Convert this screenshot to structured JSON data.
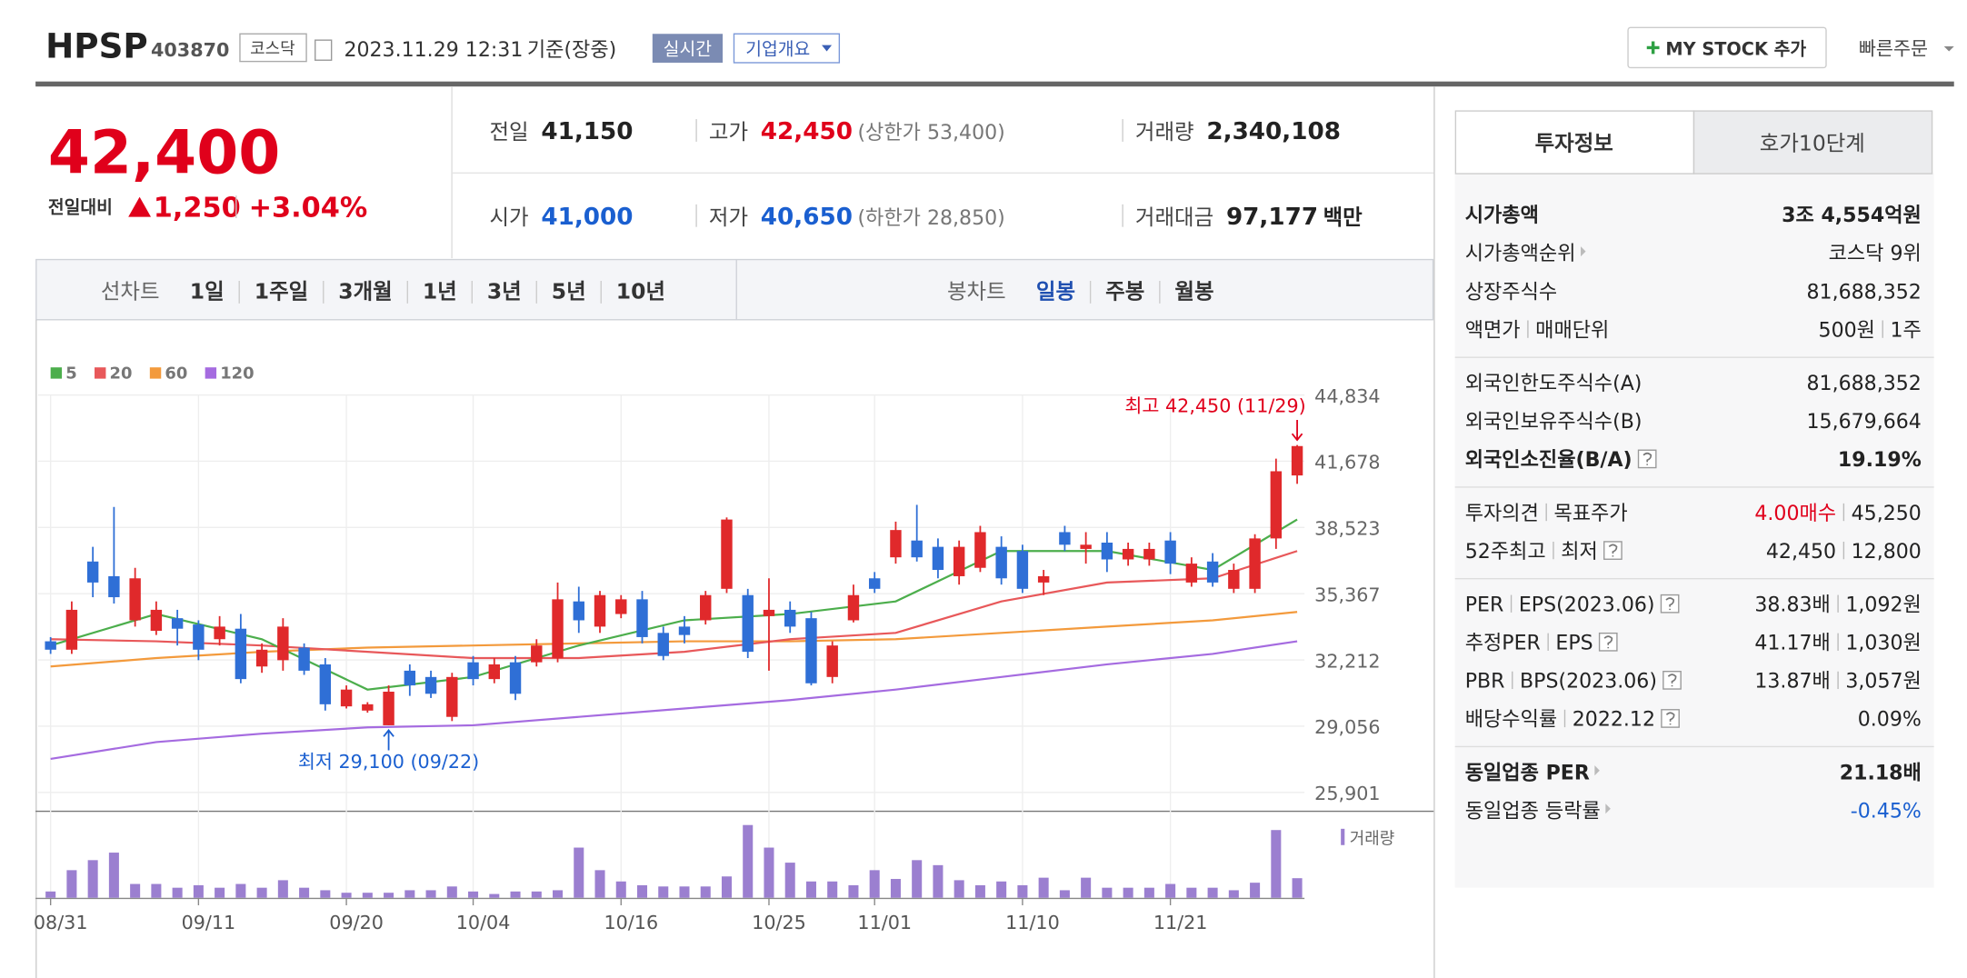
{
  "header": {
    "ticker": "HPSP",
    "code": "403870",
    "market": "코스닥",
    "datetime": "2023.11.29 12:31",
    "basis": "기준(장중)",
    "realtime": "실시간",
    "company": "기업개요",
    "my_stock": "MY STOCK 추가",
    "quick_order": "빠른주문"
  },
  "quote": {
    "price": "42,400",
    "change_label": "전일대비",
    "change": "1,250",
    "change_rate": "+3.04%"
  },
  "stats": [
    [
      {
        "label": "전일",
        "value": "41,150"
      },
      {
        "label": "고가",
        "value": "42,450",
        "note": "(상한가 53,400)",
        "color": "#e0001b"
      },
      {
        "label": "거래량",
        "value": "2,340,108"
      }
    ],
    [
      {
        "label": "시가",
        "value": "41,000",
        "color": "#1a5fd0"
      },
      {
        "label": "저가",
        "value": "40,650",
        "note": "(하한가 28,850)",
        "color": "#1a5fd0"
      },
      {
        "label": "거래대금",
        "value": "97,177",
        "unit": "백만"
      }
    ]
  ],
  "periods": {
    "line_label": "선차트",
    "line": [
      "1일",
      "1주일",
      "3개월",
      "1년",
      "3년",
      "5년",
      "10년"
    ],
    "candle_label": "봉차트",
    "candle": [
      "일봉",
      "주봉",
      "월봉"
    ],
    "selected_candle": 0
  },
  "chart_data": {
    "type": "candlestick",
    "categories": [
      "08/31",
      null,
      null,
      null,
      null,
      null,
      null,
      "09/11",
      null,
      null,
      null,
      null,
      null,
      null,
      "09/20",
      null,
      null,
      null,
      null,
      null,
      "10/04",
      null,
      null,
      null,
      null,
      null,
      null,
      "10/16",
      null,
      null,
      null,
      null,
      null,
      null,
      "10/25",
      null,
      null,
      null,
      null,
      "11/01",
      null,
      null,
      null,
      null,
      null,
      null,
      "11/10",
      null,
      null,
      null,
      null,
      null,
      null,
      "11/21",
      null,
      null,
      null,
      null,
      null,
      null
    ],
    "open": [
      33100,
      32700,
      36900,
      36200,
      34100,
      33600,
      34200,
      33900,
      33200,
      33700,
      31900,
      32200,
      32800,
      32000,
      30000,
      29800,
      29100,
      31700,
      31400,
      29500,
      32100,
      31300,
      32100,
      32100,
      32300,
      35000,
      33800,
      34400,
      35100,
      33500,
      33800,
      34100,
      35600,
      35300,
      34300,
      34600,
      34200,
      31400,
      34100,
      36100,
      37100,
      37900,
      37600,
      36200,
      36600,
      37600,
      37400,
      35900,
      38300,
      37500,
      37800,
      37000,
      37000,
      37900,
      35900,
      36900,
      35600,
      35600,
      38000,
      41000
    ],
    "close": [
      32700,
      34600,
      35900,
      35200,
      36100,
      34600,
      33700,
      32700,
      33800,
      31300,
      32700,
      33800,
      31700,
      30100,
      30800,
      30100,
      30700,
      31000,
      30600,
      31400,
      31300,
      32000,
      30600,
      32900,
      35100,
      34100,
      35300,
      35100,
      33300,
      32400,
      33400,
      35300,
      38900,
      32600,
      34600,
      33800,
      31100,
      32900,
      35300,
      35600,
      38400,
      37100,
      36500,
      37600,
      38300,
      36100,
      35600,
      36200,
      37700,
      37700,
      37000,
      37500,
      37500,
      36800,
      36800,
      35900,
      36500,
      38000,
      41200,
      42400
    ],
    "high": [
      33300,
      35000,
      37600,
      39500,
      36600,
      35000,
      34600,
      34100,
      34300,
      34400,
      33000,
      34200,
      33000,
      32300,
      31000,
      30200,
      31000,
      32000,
      31700,
      31600,
      32400,
      32300,
      32400,
      33200,
      35900,
      35700,
      35500,
      35300,
      35500,
      33800,
      34300,
      35500,
      39000,
      35600,
      36100,
      35000,
      34500,
      33100,
      35800,
      36400,
      38800,
      39600,
      38000,
      37900,
      38600,
      38100,
      37700,
      36500,
      38600,
      38300,
      38300,
      37800,
      37800,
      38300,
      37100,
      37300,
      36800,
      38200,
      41800,
      42450
    ],
    "low": [
      32500,
      32500,
      35200,
      34900,
      33800,
      33400,
      32900,
      32200,
      32900,
      31100,
      31600,
      31700,
      31500,
      29800,
      29900,
      29700,
      29100,
      30500,
      30400,
      29300,
      31000,
      31100,
      30300,
      31900,
      32100,
      33500,
      33500,
      34200,
      33000,
      32200,
      33000,
      33900,
      35400,
      32300,
      31700,
      33500,
      31000,
      31100,
      34000,
      35400,
      36800,
      36900,
      36100,
      35800,
      36400,
      35800,
      35400,
      35300,
      37400,
      36800,
      36400,
      36700,
      36700,
      36300,
      35700,
      35700,
      35400,
      35400,
      37500,
      40600
    ],
    "up_color": "#e0292b",
    "down_color": "#2f6fd6",
    "ylim": [
      25901,
      44834
    ],
    "yticks": [
      {
        "value": 25901,
        "label": "25,901"
      },
      {
        "value": 29056,
        "label": "29,056"
      },
      {
        "value": 32212,
        "label": "32,212"
      },
      {
        "value": 35367,
        "label": "35,367"
      },
      {
        "value": 38523,
        "label": "38,523"
      },
      {
        "value": 41678,
        "label": "41,678"
      },
      {
        "value": 44834,
        "label": "44,834"
      }
    ],
    "grid": true,
    "series": [
      {
        "name": "5",
        "color": "#4cae4c",
        "x": [
          0,
          5,
          10,
          15,
          20,
          25,
          30,
          35,
          40,
          45,
          50,
          55,
          59
        ],
        "values": [
          32900,
          34400,
          33200,
          30800,
          31400,
          32900,
          34100,
          34400,
          35000,
          37400,
          37400,
          36500,
          38900
        ]
      },
      {
        "name": "20",
        "color": "#e8585a",
        "x": [
          0,
          5,
          10,
          15,
          20,
          25,
          30,
          35,
          40,
          45,
          50,
          55,
          59
        ],
        "values": [
          33200,
          33100,
          32900,
          32600,
          32300,
          32300,
          32600,
          33200,
          33500,
          35000,
          35900,
          36100,
          37400
        ]
      },
      {
        "name": "60",
        "color": "#f39a3c",
        "x": [
          0,
          5,
          10,
          15,
          20,
          25,
          30,
          35,
          40,
          45,
          50,
          55,
          59
        ],
        "values": [
          31900,
          32300,
          32600,
          32800,
          32900,
          33000,
          33100,
          33100,
          33200,
          33500,
          33800,
          34100,
          34500
        ]
      },
      {
        "name": "120",
        "color": "#a56be0",
        "x": [
          0,
          5,
          10,
          15,
          20,
          25,
          30,
          35,
          40,
          45,
          50,
          55,
          59
        ],
        "values": [
          27500,
          28300,
          28700,
          29000,
          29100,
          29500,
          29900,
          30300,
          30800,
          31400,
          32000,
          32500,
          33100
        ]
      }
    ],
    "volume": {
      "name": "거래량",
      "color": "#9b7fd0",
      "ylim": [
        0,
        9000000
      ],
      "values": [
        750000,
        3300000,
        4500000,
        5400000,
        1650000,
        1650000,
        1200000,
        1500000,
        1200000,
        1650000,
        1200000,
        2100000,
        1200000,
        900000,
        600000,
        600000,
        600000,
        900000,
        900000,
        1350000,
        750000,
        450000,
        750000,
        750000,
        900000,
        6000000,
        3300000,
        1950000,
        1500000,
        1350000,
        1350000,
        1350000,
        2550000,
        8700000,
        6000000,
        4200000,
        1950000,
        1950000,
        1500000,
        3300000,
        2250000,
        4500000,
        3900000,
        2100000,
        1500000,
        1950000,
        1500000,
        2400000,
        900000,
        2400000,
        1200000,
        1200000,
        1200000,
        1650000,
        1200000,
        1200000,
        900000,
        1800000,
        8100000,
        2340108
      ]
    },
    "annotations": [
      {
        "text": "최고 42,450 (11/29)",
        "index": 59,
        "value": 42450,
        "color": "#e0001b"
      },
      {
        "text": "최저 29,100 (09/22)",
        "index": 16,
        "value": 29100,
        "color": "#1a5fd0"
      }
    ]
  },
  "info": {
    "tabs": [
      "투자정보",
      "호가10단계"
    ],
    "groups": [
      [
        {
          "label": [
            "시가총액"
          ],
          "value": [
            "3조 4,554억원"
          ],
          "bold": true
        },
        {
          "label": [
            "시가총액순위"
          ],
          "value": [
            "코스닥 9위"
          ],
          "arrow": true
        },
        {
          "label": [
            "상장주식수"
          ],
          "value": [
            "81,688,352"
          ]
        },
        {
          "label": [
            "액면가",
            "매매단위"
          ],
          "value": [
            "500원",
            "1주"
          ]
        }
      ],
      [
        {
          "label": [
            "외국인한도주식수(A)"
          ],
          "value": [
            "81,688,352"
          ]
        },
        {
          "label": [
            "외국인보유주식수(B)"
          ],
          "value": [
            "15,679,664"
          ]
        },
        {
          "label": [
            "외국인소진율(B/A)"
          ],
          "value": [
            "19.19%"
          ],
          "bold": true,
          "help": true
        }
      ],
      [
        {
          "label": [
            "투자의견",
            "목표주가"
          ],
          "value": [
            "4.00매수",
            "45,250"
          ],
          "color": "#e0001b"
        },
        {
          "label": [
            "52주최고",
            "최저"
          ],
          "value": [
            "42,450",
            "12,800"
          ],
          "help": true
        }
      ],
      [
        {
          "label": [
            "PER",
            "EPS(2023.06)"
          ],
          "value": [
            "38.83배",
            "1,092원"
          ],
          "help": true
        },
        {
          "label": [
            "추정PER",
            "EPS"
          ],
          "value": [
            "41.17배",
            "1,030원"
          ],
          "help": true
        },
        {
          "label": [
            "PBR",
            "BPS(2023.06)"
          ],
          "value": [
            "13.87배",
            "3,057원"
          ],
          "help": true
        },
        {
          "label": [
            "배당수익률",
            "2022.12"
          ],
          "value": [
            "0.09%"
          ],
          "help": true
        }
      ],
      [
        {
          "label": [
            "동일업종 PER"
          ],
          "value": [
            "21.18배"
          ],
          "bold": true,
          "arrow": true
        },
        {
          "label": [
            "동일업종 등락률"
          ],
          "value": [
            "-0.45%"
          ],
          "arrow": true,
          "color": "#1a5fd0"
        }
      ]
    ]
  }
}
